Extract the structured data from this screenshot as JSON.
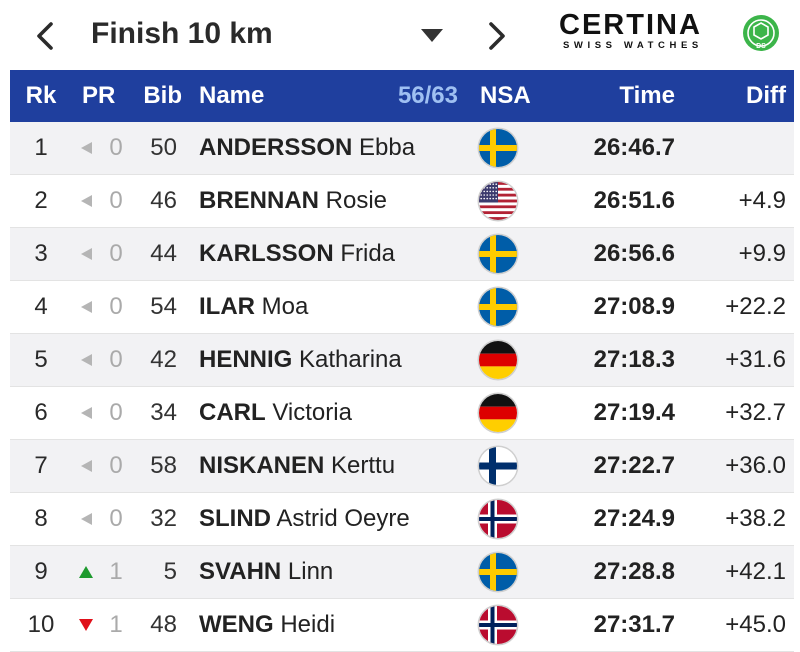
{
  "header": {
    "title": "Finish 10 km",
    "prev_icon": "chevron-left-icon",
    "next_icon": "chevron-right-icon",
    "dropdown_icon": "caret-down-icon"
  },
  "sponsor": {
    "brand": "CERTINA",
    "tagline": "SWISS WATCHES",
    "mark": "DS"
  },
  "table": {
    "columns": {
      "rank": "Rk",
      "pr": "PR",
      "bib": "Bib",
      "name": "Name",
      "count": "56/63",
      "nsa": "NSA",
      "time": "Time",
      "diff": "Diff"
    },
    "rows": [
      {
        "rank": "1",
        "pr_dir": "same",
        "pr_value": "0",
        "bib": "50",
        "last": "ANDERSSON",
        "first": "Ebba",
        "nsa": "SWE",
        "time": "26:46.7",
        "diff": ""
      },
      {
        "rank": "2",
        "pr_dir": "same",
        "pr_value": "0",
        "bib": "46",
        "last": "BRENNAN",
        "first": "Rosie",
        "nsa": "USA",
        "time": "26:51.6",
        "diff": "+4.9"
      },
      {
        "rank": "3",
        "pr_dir": "same",
        "pr_value": "0",
        "bib": "44",
        "last": "KARLSSON",
        "first": "Frida",
        "nsa": "SWE",
        "time": "26:56.6",
        "diff": "+9.9"
      },
      {
        "rank": "4",
        "pr_dir": "same",
        "pr_value": "0",
        "bib": "54",
        "last": "ILAR",
        "first": "Moa",
        "nsa": "SWE",
        "time": "27:08.9",
        "diff": "+22.2"
      },
      {
        "rank": "5",
        "pr_dir": "same",
        "pr_value": "0",
        "bib": "42",
        "last": "HENNIG",
        "first": "Katharina",
        "nsa": "GER",
        "time": "27:18.3",
        "diff": "+31.6"
      },
      {
        "rank": "6",
        "pr_dir": "same",
        "pr_value": "0",
        "bib": "34",
        "last": "CARL",
        "first": "Victoria",
        "nsa": "GER",
        "time": "27:19.4",
        "diff": "+32.7"
      },
      {
        "rank": "7",
        "pr_dir": "same",
        "pr_value": "0",
        "bib": "58",
        "last": "NISKANEN",
        "first": "Kerttu",
        "nsa": "FIN",
        "time": "27:22.7",
        "diff": "+36.0"
      },
      {
        "rank": "8",
        "pr_dir": "same",
        "pr_value": "0",
        "bib": "32",
        "last": "SLIND",
        "first": "Astrid Oeyre",
        "nsa": "NOR",
        "time": "27:24.9",
        "diff": "+38.2"
      },
      {
        "rank": "9",
        "pr_dir": "up",
        "pr_value": "1",
        "bib": "5",
        "last": "SVAHN",
        "first": "Linn",
        "nsa": "SWE",
        "time": "27:28.8",
        "diff": "+42.1"
      },
      {
        "rank": "10",
        "pr_dir": "down",
        "pr_value": "1",
        "bib": "48",
        "last": "WENG",
        "first": "Heidi",
        "nsa": "NOR",
        "time": "27:31.7",
        "diff": "+45.0"
      }
    ]
  },
  "colors": {
    "header_bg": "#1f3f9e",
    "count_text": "#9fc0f2",
    "up": "#1e9a2e",
    "down": "#e0101a",
    "same": "#b5b5b5"
  }
}
